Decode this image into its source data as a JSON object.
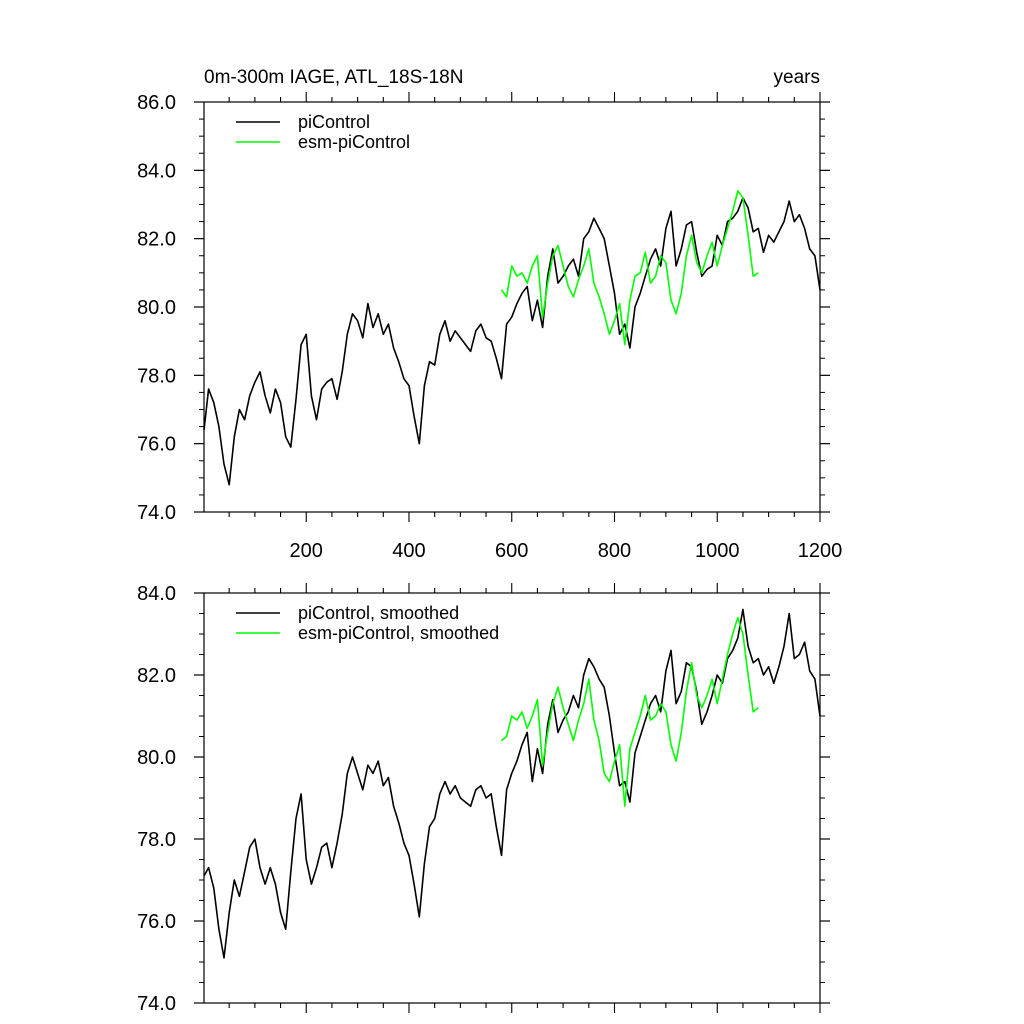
{
  "figure": {
    "title_left": "0m-300m IAGE, ATL_18S-18N",
    "title_right": "years"
  },
  "chart_data": [
    {
      "type": "line",
      "title": "0m-300m IAGE, ATL_18S-18N",
      "xlabel": "years",
      "ylabel": "",
      "xlim": [
        1,
        1200
      ],
      "ylim": [
        74.0,
        86.0
      ],
      "xticks": [
        200,
        400,
        600,
        800,
        1000,
        1200
      ],
      "yticks": [
        74.0,
        76.0,
        78.0,
        80.0,
        82.0,
        84.0,
        86.0
      ],
      "ytick_labels": [
        "74.0",
        "76.0",
        "78.0",
        "80.0",
        "82.0",
        "84.0",
        "86.0"
      ],
      "xtick_labels": [
        "200",
        "400",
        "600",
        "800",
        "1000",
        "1200"
      ],
      "grid": false,
      "legend": "top-left",
      "series": [
        {
          "name": "piControl",
          "color": "#000000",
          "x": [
            1,
            10,
            20,
            30,
            40,
            50,
            60,
            70,
            80,
            90,
            100,
            110,
            120,
            130,
            140,
            150,
            160,
            170,
            180,
            190,
            200,
            210,
            220,
            230,
            240,
            250,
            260,
            270,
            280,
            290,
            300,
            310,
            320,
            330,
            340,
            350,
            360,
            370,
            380,
            390,
            400,
            410,
            420,
            430,
            440,
            450,
            460,
            470,
            480,
            490,
            500,
            510,
            520,
            530,
            540,
            550,
            560,
            570,
            580,
            590,
            600,
            610,
            620,
            630,
            640,
            650,
            660,
            670,
            680,
            690,
            700,
            710,
            720,
            730,
            740,
            750,
            760,
            770,
            780,
            790,
            800,
            810,
            820,
            830,
            840,
            850,
            860,
            870,
            880,
            890,
            900,
            910,
            920,
            930,
            940,
            950,
            960,
            970,
            980,
            990,
            1000,
            1010,
            1020,
            1030,
            1040,
            1050,
            1060,
            1070,
            1080,
            1090,
            1100,
            1110,
            1120,
            1130,
            1140,
            1150,
            1160,
            1170,
            1180,
            1190,
            1200
          ],
          "y": [
            76.4,
            77.6,
            77.2,
            76.5,
            75.4,
            74.8,
            76.2,
            77.0,
            76.7,
            77.4,
            77.8,
            78.1,
            77.4,
            76.9,
            77.6,
            77.2,
            76.2,
            75.9,
            77.3,
            78.9,
            79.2,
            77.4,
            76.7,
            77.6,
            77.8,
            77.9,
            77.3,
            78.1,
            79.2,
            79.8,
            79.6,
            79.1,
            80.1,
            79.4,
            79.8,
            79.2,
            79.5,
            78.8,
            78.4,
            77.9,
            77.7,
            76.8,
            76.0,
            77.7,
            78.4,
            78.3,
            79.2,
            79.6,
            79.0,
            79.3,
            79.1,
            78.9,
            78.7,
            79.3,
            79.5,
            79.1,
            79.0,
            78.5,
            77.9,
            79.5,
            79.7,
            80.1,
            80.4,
            80.6,
            79.6,
            80.2,
            79.4,
            80.9,
            81.7,
            80.7,
            80.9,
            81.2,
            81.4,
            80.9,
            82.0,
            82.2,
            82.6,
            82.3,
            82.0,
            81.2,
            80.4,
            79.2,
            79.5,
            78.8,
            80.0,
            80.4,
            80.9,
            81.4,
            81.7,
            81.2,
            82.3,
            82.8,
            81.2,
            81.7,
            82.4,
            82.5,
            81.6,
            80.9,
            81.1,
            81.2,
            82.1,
            81.8,
            82.5,
            82.6,
            82.8,
            83.2,
            82.9,
            82.2,
            82.3,
            81.6,
            82.1,
            81.9,
            82.2,
            82.5,
            83.1,
            82.5,
            82.7,
            82.3,
            81.7,
            81.5,
            80.5
          ]
        },
        {
          "name": "esm-piControl",
          "color": "#00ff00",
          "x": [
            580,
            590,
            600,
            610,
            620,
            630,
            640,
            650,
            660,
            670,
            680,
            690,
            700,
            710,
            720,
            730,
            740,
            750,
            760,
            770,
            780,
            790,
            800,
            810,
            820,
            830,
            840,
            850,
            860,
            870,
            880,
            890,
            900,
            910,
            920,
            930,
            940,
            950,
            960,
            970,
            980,
            990,
            1000,
            1010,
            1020,
            1030,
            1040,
            1050,
            1060,
            1070,
            1080
          ],
          "y": [
            80.5,
            80.3,
            81.2,
            80.9,
            81.0,
            80.7,
            81.2,
            81.5,
            79.7,
            80.7,
            81.5,
            81.8,
            81.2,
            80.6,
            80.3,
            80.8,
            81.2,
            81.7,
            80.7,
            80.3,
            79.8,
            79.2,
            79.6,
            80.1,
            78.9,
            80.2,
            80.9,
            81.0,
            81.6,
            80.7,
            80.9,
            81.5,
            81.3,
            80.2,
            79.8,
            80.4,
            81.5,
            82.1,
            81.3,
            81.0,
            81.5,
            81.9,
            81.2,
            81.8,
            82.3,
            82.8,
            83.4,
            83.2,
            82.1,
            80.9,
            81.0
          ]
        }
      ]
    },
    {
      "type": "line",
      "title": "",
      "xlabel": "",
      "ylabel": "",
      "xlim": [
        1,
        1200
      ],
      "ylim": [
        74.0,
        84.0
      ],
      "yticks": [
        74.0,
        76.0,
        78.0,
        80.0,
        82.0,
        84.0
      ],
      "ytick_labels": [
        "74.0",
        "76.0",
        "78.0",
        "80.0",
        "82.0",
        "84.0"
      ],
      "grid": false,
      "legend": "top-left",
      "series": [
        {
          "name": "piControl, smoothed",
          "color": "#000000",
          "x": [
            1,
            10,
            20,
            30,
            40,
            50,
            60,
            70,
            80,
            90,
            100,
            110,
            120,
            130,
            140,
            150,
            160,
            170,
            180,
            190,
            200,
            210,
            220,
            230,
            240,
            250,
            260,
            270,
            280,
            290,
            300,
            310,
            320,
            330,
            340,
            350,
            360,
            370,
            380,
            390,
            400,
            410,
            420,
            430,
            440,
            450,
            460,
            470,
            480,
            490,
            500,
            510,
            520,
            530,
            540,
            550,
            560,
            570,
            580,
            590,
            600,
            610,
            620,
            630,
            640,
            650,
            660,
            670,
            680,
            690,
            700,
            710,
            720,
            730,
            740,
            750,
            760,
            770,
            780,
            790,
            800,
            810,
            820,
            830,
            840,
            850,
            860,
            870,
            880,
            890,
            900,
            910,
            920,
            930,
            940,
            950,
            960,
            970,
            980,
            990,
            1000,
            1010,
            1020,
            1030,
            1040,
            1050,
            1060,
            1070,
            1080,
            1090,
            1100,
            1110,
            1120,
            1130,
            1140,
            1150,
            1160,
            1170,
            1180,
            1190,
            1200
          ],
          "y": [
            77.1,
            77.3,
            76.8,
            75.8,
            75.1,
            76.2,
            77.0,
            76.6,
            77.2,
            77.8,
            78.0,
            77.3,
            76.9,
            77.3,
            76.9,
            76.2,
            75.8,
            77.2,
            78.5,
            79.1,
            77.5,
            76.9,
            77.3,
            77.8,
            77.9,
            77.3,
            77.9,
            78.6,
            79.6,
            80.0,
            79.6,
            79.2,
            79.8,
            79.6,
            79.9,
            79.3,
            79.5,
            78.8,
            78.4,
            77.9,
            77.6,
            76.9,
            76.1,
            77.4,
            78.3,
            78.5,
            79.1,
            79.4,
            79.1,
            79.3,
            79.0,
            78.9,
            78.8,
            79.2,
            79.3,
            79.0,
            79.1,
            78.3,
            77.6,
            79.2,
            79.6,
            79.9,
            80.3,
            80.6,
            79.4,
            80.2,
            79.6,
            80.8,
            81.4,
            80.6,
            80.9,
            81.1,
            81.5,
            81.2,
            82.0,
            82.4,
            82.2,
            81.9,
            81.7,
            81.0,
            80.1,
            79.3,
            79.4,
            78.9,
            80.1,
            80.5,
            80.9,
            81.3,
            81.5,
            81.1,
            82.1,
            82.6,
            81.3,
            81.6,
            82.3,
            82.2,
            81.6,
            80.8,
            81.1,
            81.5,
            82.0,
            81.8,
            82.4,
            82.6,
            82.9,
            83.6,
            82.7,
            82.3,
            82.4,
            82.0,
            82.2,
            81.8,
            82.2,
            82.7,
            83.5,
            82.4,
            82.5,
            82.8,
            82.1,
            81.9,
            81.0
          ]
        },
        {
          "name": "esm-piControl, smoothed",
          "color": "#00ff00",
          "x": [
            580,
            590,
            600,
            610,
            620,
            630,
            640,
            650,
            660,
            670,
            680,
            690,
            700,
            710,
            720,
            730,
            740,
            750,
            760,
            770,
            780,
            790,
            800,
            810,
            820,
            830,
            840,
            850,
            860,
            870,
            880,
            890,
            900,
            910,
            920,
            930,
            940,
            950,
            960,
            970,
            980,
            990,
            1000,
            1010,
            1020,
            1030,
            1040,
            1050,
            1060,
            1070,
            1080
          ],
          "y": [
            80.4,
            80.5,
            81.0,
            80.9,
            81.1,
            80.7,
            81.0,
            81.4,
            79.8,
            80.6,
            81.3,
            81.7,
            81.2,
            80.8,
            80.4,
            80.9,
            81.3,
            81.9,
            80.9,
            80.4,
            79.6,
            79.4,
            79.9,
            80.3,
            78.8,
            80.2,
            80.6,
            81.0,
            81.5,
            80.9,
            81.0,
            81.3,
            81.1,
            80.3,
            79.9,
            80.6,
            81.6,
            82.3,
            81.5,
            81.2,
            81.5,
            81.9,
            81.3,
            81.9,
            82.5,
            83.0,
            83.4,
            83.0,
            82.0,
            81.1,
            81.2
          ]
        }
      ]
    }
  ]
}
